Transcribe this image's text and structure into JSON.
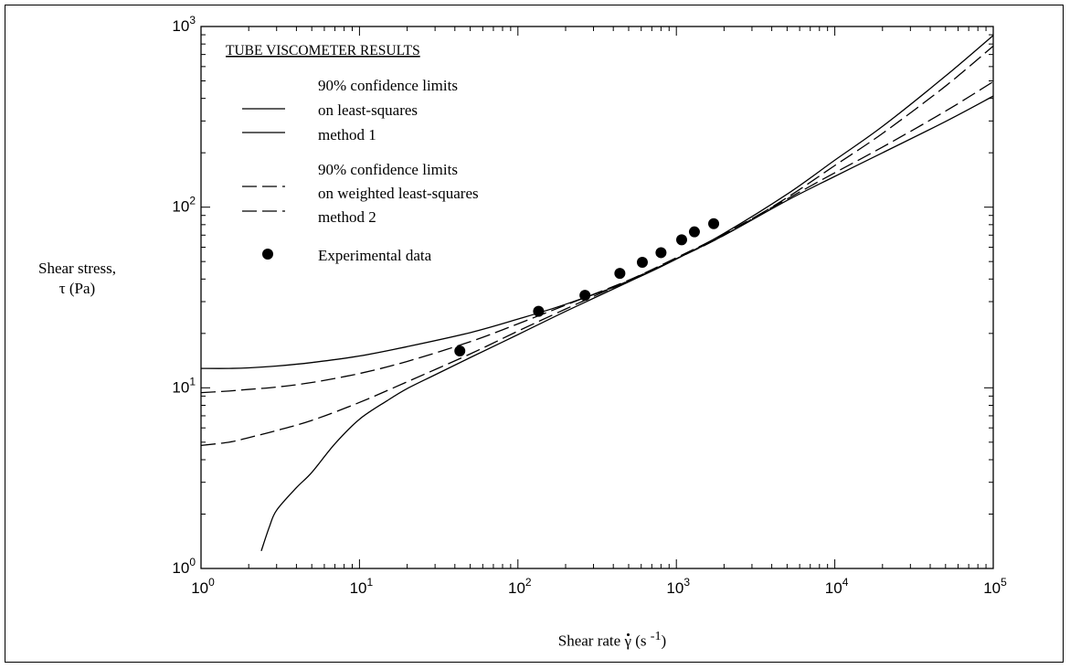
{
  "chart_data": {
    "type": "line",
    "xscale": "log",
    "yscale": "log",
    "xlim": [
      1,
      100000
    ],
    "ylim": [
      1,
      1000
    ],
    "x_ticks": [
      {
        "value": 1,
        "base": "10",
        "exp": "0"
      },
      {
        "value": 10,
        "base": "10",
        "exp": "1"
      },
      {
        "value": 100,
        "base": "10",
        "exp": "2"
      },
      {
        "value": 1000,
        "base": "10",
        "exp": "3"
      },
      {
        "value": 10000,
        "base": "10",
        "exp": "4"
      },
      {
        "value": 100000,
        "base": "10",
        "exp": "5"
      }
    ],
    "y_ticks": [
      {
        "value": 1,
        "base": "10",
        "exp": "0"
      },
      {
        "value": 10,
        "base": "10",
        "exp": "1"
      },
      {
        "value": 100,
        "base": "10",
        "exp": "2"
      },
      {
        "value": 1000,
        "base": "10",
        "exp": "3"
      }
    ],
    "ylabel_line1": "Shear stress,",
    "ylabel_line2": "τ (Pa)",
    "xlabel_text": "Shear rate ",
    "xlabel_symbol": "γ",
    "xlabel_unit_open": " (s ",
    "xlabel_unit_exp": "-1",
    "xlabel_unit_close": ")",
    "legend": {
      "position": "top-left",
      "title": "TUBE VISCOMETER RESULTS",
      "group1_lines": [
        "90% confidence limits",
        "on least-squares",
        "method 1"
      ],
      "group2_lines": [
        "90% confidence limits",
        "on weighted least-squares",
        "method 2"
      ],
      "points_label": "Experimental data"
    },
    "grid": false,
    "series": [
      {
        "style": "solid",
        "x": [
          1,
          1.5,
          2,
          3,
          5,
          10,
          20,
          50,
          100,
          200,
          500,
          1000,
          2000,
          5000,
          10000,
          20000,
          50000,
          100000
        ],
        "y": [
          12.8,
          12.8,
          12.9,
          13.2,
          13.8,
          15.0,
          16.9,
          20.2,
          24.0,
          29.0,
          38.8,
          51.6,
          71.6,
          118,
          182,
          280,
          532,
          893
        ]
      },
      {
        "style": "solid",
        "x": [
          2.4,
          2.7,
          3,
          4,
          5,
          7,
          10,
          15,
          20,
          30,
          50,
          100,
          200,
          500,
          1000,
          2000,
          5000,
          10000,
          20000,
          50000,
          100000
        ],
        "y": [
          1.25,
          1.7,
          2.1,
          2.8,
          3.4,
          4.9,
          6.7,
          8.5,
          9.9,
          11.8,
          14.7,
          19.7,
          26.5,
          38.6,
          51.8,
          69.9,
          109,
          148,
          200,
          298,
          412
        ]
      },
      {
        "style": "dashed",
        "x": [
          1,
          1.5,
          2,
          3,
          5,
          10,
          20,
          50,
          100,
          200,
          500,
          1000,
          2000,
          5000,
          10000,
          20000,
          50000,
          100000
        ],
        "y": [
          9.4,
          9.6,
          9.8,
          10.1,
          10.7,
          12.0,
          14.0,
          18.0,
          22.6,
          28.7,
          39.4,
          52.5,
          71.0,
          111,
          155,
          215,
          340,
          495
        ]
      },
      {
        "style": "dashed",
        "x": [
          1,
          1.5,
          2,
          3,
          5,
          10,
          20,
          50,
          100,
          200,
          500,
          1000,
          2000,
          5000,
          10000,
          20000,
          50000,
          100000
        ],
        "y": [
          4.8,
          5.0,
          5.3,
          5.8,
          6.6,
          8.3,
          10.8,
          15.4,
          20.6,
          27.3,
          39.2,
          51.8,
          69.9,
          113,
          170,
          256,
          468,
          780
        ]
      }
    ],
    "points": [
      {
        "x": 43,
        "y": 16
      },
      {
        "x": 135,
        "y": 26.5
      },
      {
        "x": 265,
        "y": 32.5
      },
      {
        "x": 440,
        "y": 43
      },
      {
        "x": 610,
        "y": 49.5
      },
      {
        "x": 800,
        "y": 56
      },
      {
        "x": 1080,
        "y": 66
      },
      {
        "x": 1300,
        "y": 73
      },
      {
        "x": 1720,
        "y": 81
      }
    ]
  }
}
